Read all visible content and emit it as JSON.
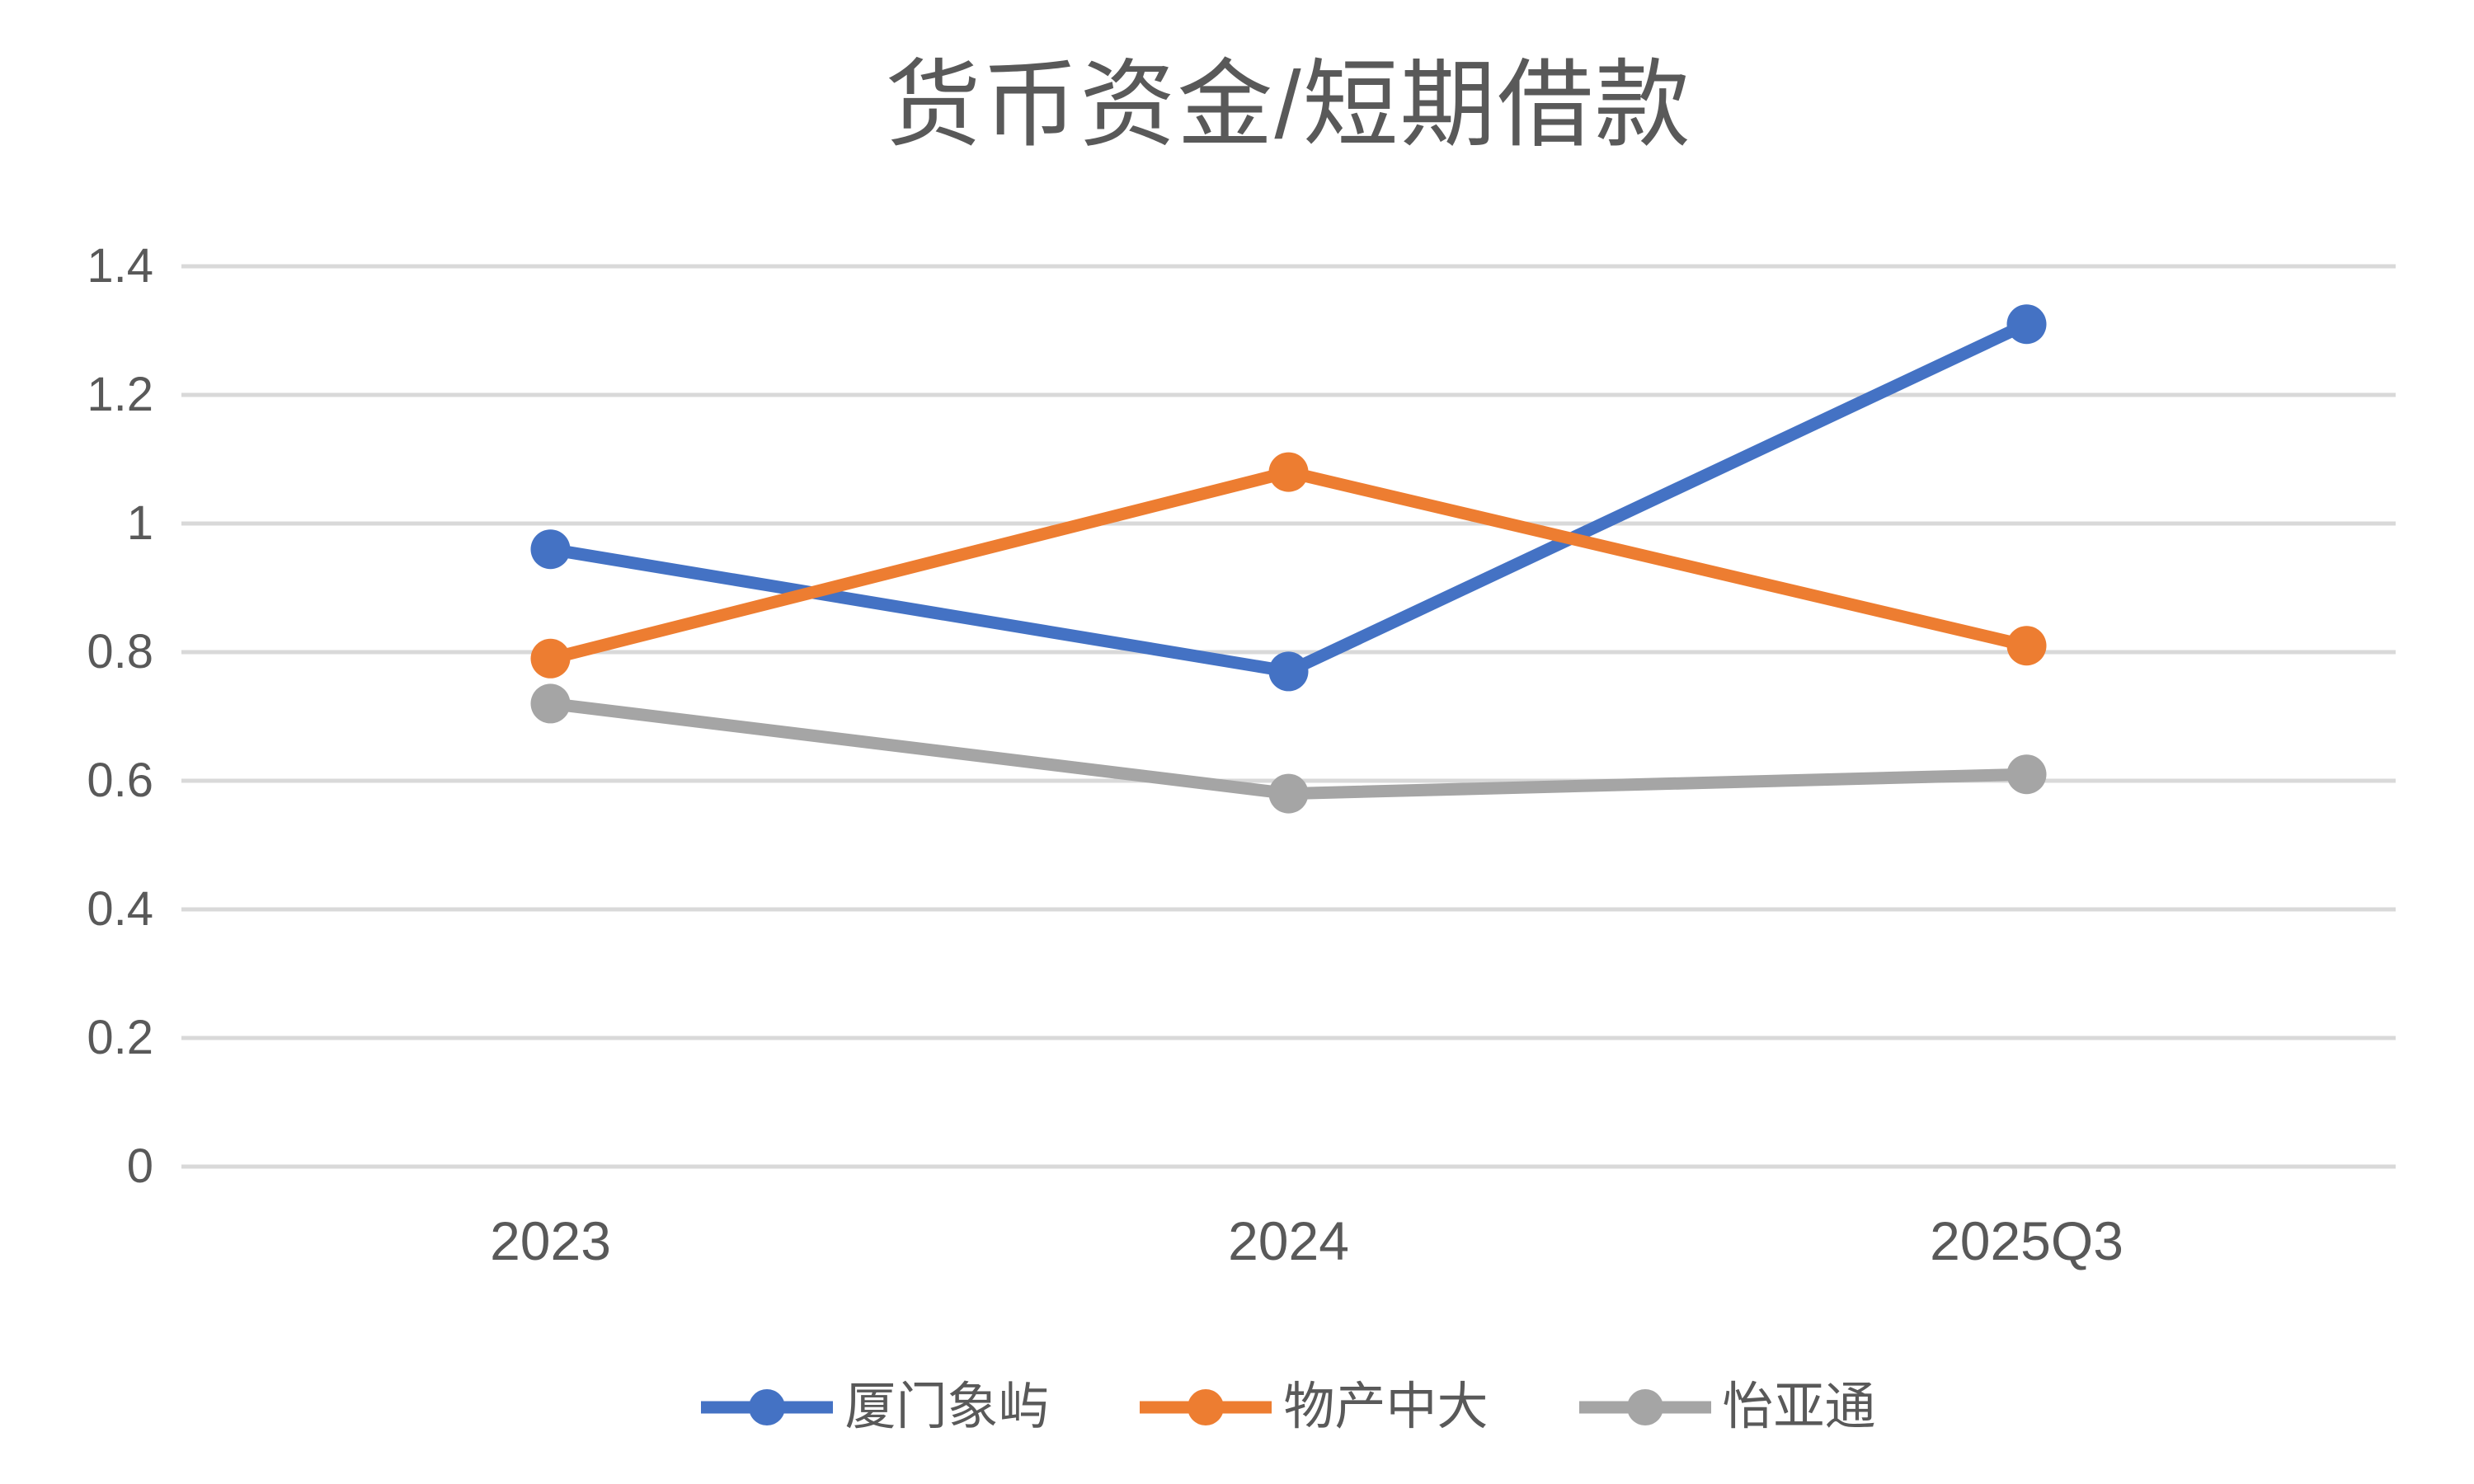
{
  "chart_data": {
    "type": "line",
    "title": "货币资金/短期借款",
    "categories": [
      "2023",
      "2024",
      "2025Q3"
    ],
    "series": [
      {
        "name": "厦门象屿",
        "color": "#4472C4",
        "values": [
          0.96,
          0.77,
          1.31
        ]
      },
      {
        "name": "物产中大",
        "color": "#ED7D31",
        "values": [
          0.79,
          1.08,
          0.81
        ]
      },
      {
        "name": "怡亚通",
        "color": "#A5A5A5",
        "values": [
          0.72,
          0.58,
          0.61
        ]
      }
    ],
    "ylim": [
      0,
      1.4
    ],
    "ytick_step": 0.2,
    "ytick_labels": [
      "0",
      "0.2",
      "0.4",
      "0.6",
      "0.8",
      "1",
      "1.2",
      "1.4"
    ],
    "xlabel": "",
    "ylabel": "",
    "grid": true,
    "legend_position": "bottom",
    "gridline_color": "#D9D9D9",
    "text_color": "#595959"
  }
}
